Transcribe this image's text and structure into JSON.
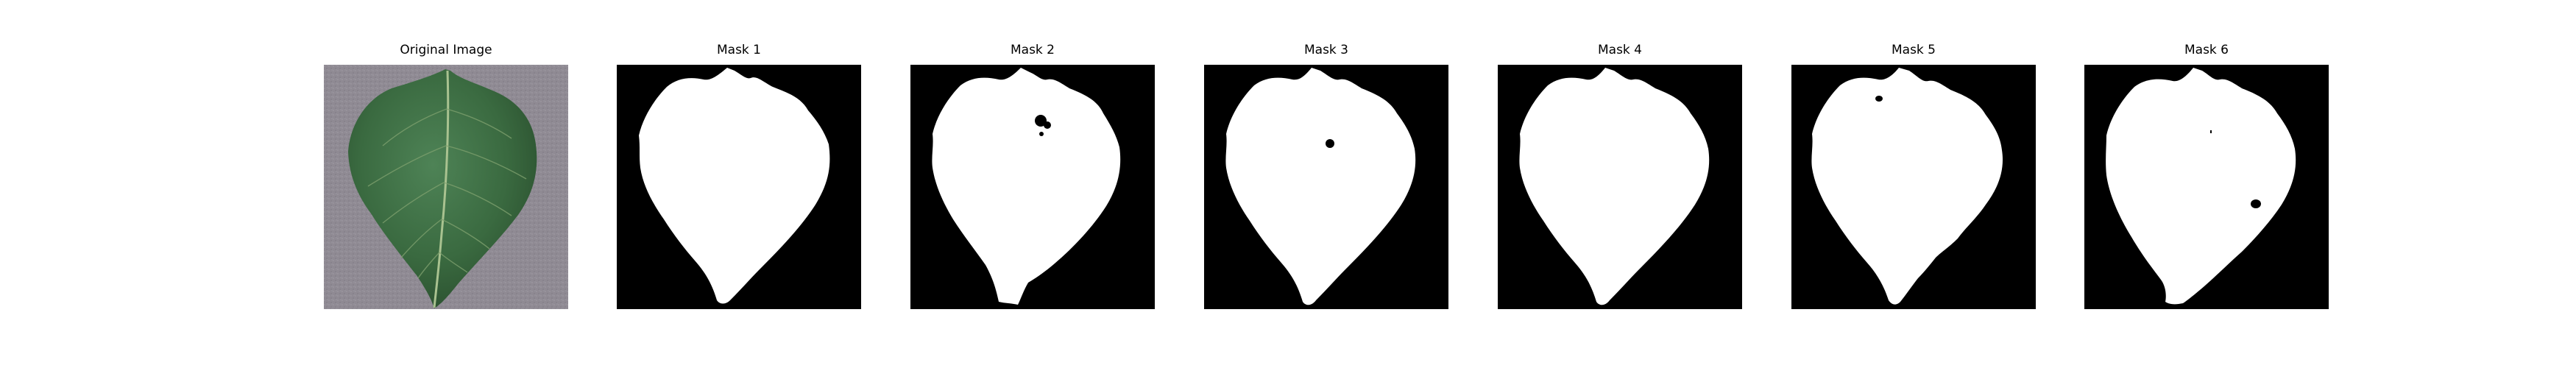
{
  "figure": {
    "panels": [
      {
        "title": "Original Image",
        "kind": "photo"
      },
      {
        "title": "Mask 1",
        "kind": "mask",
        "variant": 1
      },
      {
        "title": "Mask 2",
        "kind": "mask",
        "variant": 2
      },
      {
        "title": "Mask 3",
        "kind": "mask",
        "variant": 3
      },
      {
        "title": "Mask 4",
        "kind": "mask",
        "variant": 4
      },
      {
        "title": "Mask 5",
        "kind": "mask",
        "variant": 5
      },
      {
        "title": "Mask 6",
        "kind": "mask",
        "variant": 6
      }
    ]
  },
  "colors": {
    "background": "#ffffff",
    "mask_background": "#000000",
    "mask_foreground": "#ffffff",
    "photo_background": "#8f8a93",
    "leaf_dark": "#2e5a33",
    "leaf_mid": "#3f7046",
    "leaf_vein": "#9fb98a"
  }
}
